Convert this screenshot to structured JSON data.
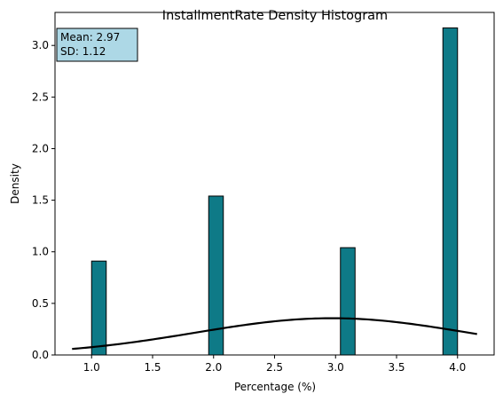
{
  "chart_data": {
    "type": "bar",
    "title": "InstallmentRate Density Histogram",
    "xlabel": "Percentage (%)",
    "ylabel": "Density",
    "xlim": [
      0.7,
      4.3
    ],
    "ylim": [
      0,
      3.32
    ],
    "xticks": [
      "1.0",
      "1.5",
      "2.0",
      "2.5",
      "3.0",
      "3.5",
      "4.0"
    ],
    "yticks": [
      "0.0",
      "0.5",
      "1.0",
      "1.5",
      "2.0",
      "2.5",
      "3.0"
    ],
    "bar_color": "#0e7a87",
    "bar_edge_color": "#000000",
    "bars": [
      {
        "x0": 1.0,
        "x1": 1.12,
        "value": 0.91
      },
      {
        "x0": 1.96,
        "x1": 2.08,
        "value": 1.54
      },
      {
        "x0": 3.04,
        "x1": 3.16,
        "value": 1.04
      },
      {
        "x0": 3.88,
        "x1": 4.0,
        "value": 3.17
      }
    ],
    "density_curve": {
      "color": "#000000",
      "mean": 2.97,
      "sd": 1.12,
      "x_range": [
        0.84,
        4.16
      ]
    },
    "stats_box": {
      "lines": [
        "Mean: 2.97",
        "SD: 1.12"
      ],
      "background": "#add8e6",
      "placement": "top-left"
    },
    "grid": false
  }
}
